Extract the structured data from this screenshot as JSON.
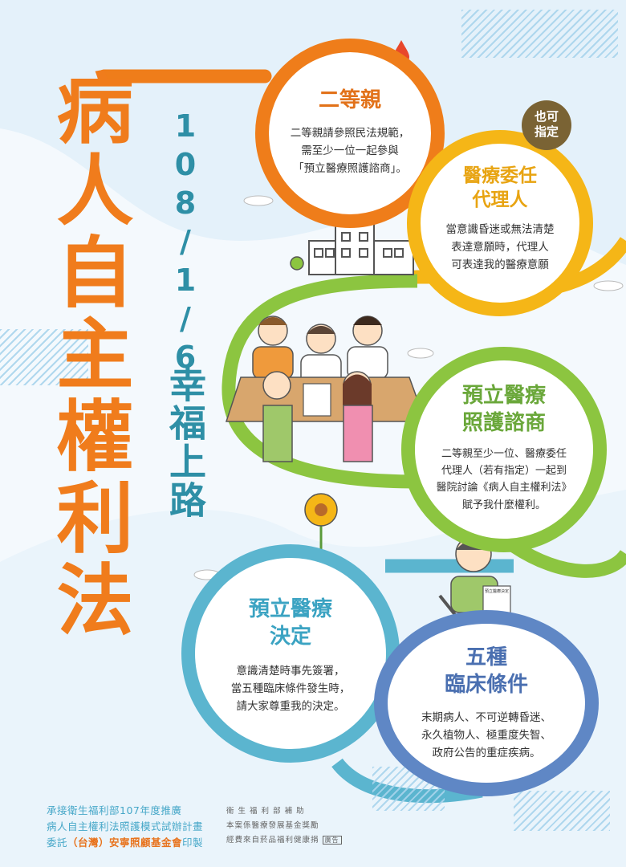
{
  "title": "病人自主權利法",
  "date": "108/1/6",
  "slogan": "幸福上路",
  "badge": "也可指定",
  "circles": [
    {
      "title": "二等親",
      "lines": [
        "二等親請參照民法規範，",
        "需至少一位一起參與",
        "「預立醫療照護諮商」。"
      ],
      "color": "#ef7d1a"
    },
    {
      "title_lines": [
        "醫療委任",
        "代理人"
      ],
      "lines": [
        "當意識昏迷或無法清楚",
        "表達意願時，代理人",
        "可表達我的醫療意願"
      ],
      "color": "#f5b617"
    },
    {
      "title_lines": [
        "預立醫療",
        "照護諮商"
      ],
      "lines": [
        "二等親至少一位、醫療委任",
        "代理人（若有指定）一起到",
        "醫院討論《病人自主權利法》",
        "賦予我什麼權利。"
      ],
      "color": "#8cc540"
    },
    {
      "title_lines": [
        "預立醫療",
        "決定"
      ],
      "lines": [
        "意識清楚時事先簽署，",
        "當五種臨床條件發生時，",
        "請大家尊重我的決定。"
      ],
      "color": "#5bb5cf"
    },
    {
      "title_lines": [
        "五種",
        "臨床條件"
      ],
      "lines": [
        "末期病人、不可逆轉昏迷、",
        "永久植物人、極重度失智、",
        "政府公告的重症疾病。"
      ],
      "color": "#5f87c5"
    }
  ],
  "document_label": "預立醫療決定",
  "footer": {
    "left_line1": "承接衛生福利部107年度推廣",
    "left_line2": "病人自主權利法照護模式試辦計畫",
    "left_line3_pre": "委託",
    "left_line3_org": "（台灣）安寧照顧基金會",
    "left_line3_post": "印製",
    "right_line1": "衛 生 福 利 部 補 助",
    "right_line2": "本案係醫療發展基金獎勵",
    "right_line3": "經費來自菸品福利健康捐",
    "right_badge": "廣告"
  },
  "colors": {
    "title": "#f07c1c",
    "teal": "#2e8fa6",
    "orange": "#ef7d1a",
    "yellow": "#f5b617",
    "green": "#8cc540",
    "cyan": "#5bb5cf",
    "blue": "#5f87c5"
  }
}
